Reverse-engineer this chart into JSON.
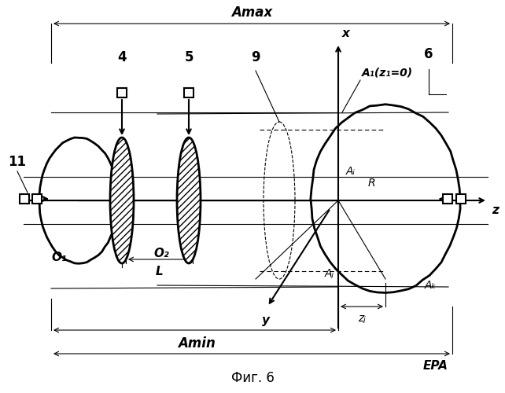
{
  "bg_color": "#ffffff",
  "fig_caption": "Фиг. 6",
  "title_Amax": "Amax",
  "label_4": "4",
  "label_5": "5",
  "label_9": "9",
  "label_6": "6",
  "label_11": "11",
  "label_x": "x",
  "label_z": "z",
  "label_y": "y",
  "label_O1": "O₁",
  "label_O2": "O₂",
  "label_L": "L",
  "label_Amin": "Amin",
  "label_EPA": "EPA",
  "label_A1": "A₁(z₁=0)",
  "label_Ai": "Aᵢ",
  "label_Aj": "Aⱼ",
  "label_Ak": "Aₖ",
  "label_Ar": "R",
  "label_zj": "zⱼ"
}
